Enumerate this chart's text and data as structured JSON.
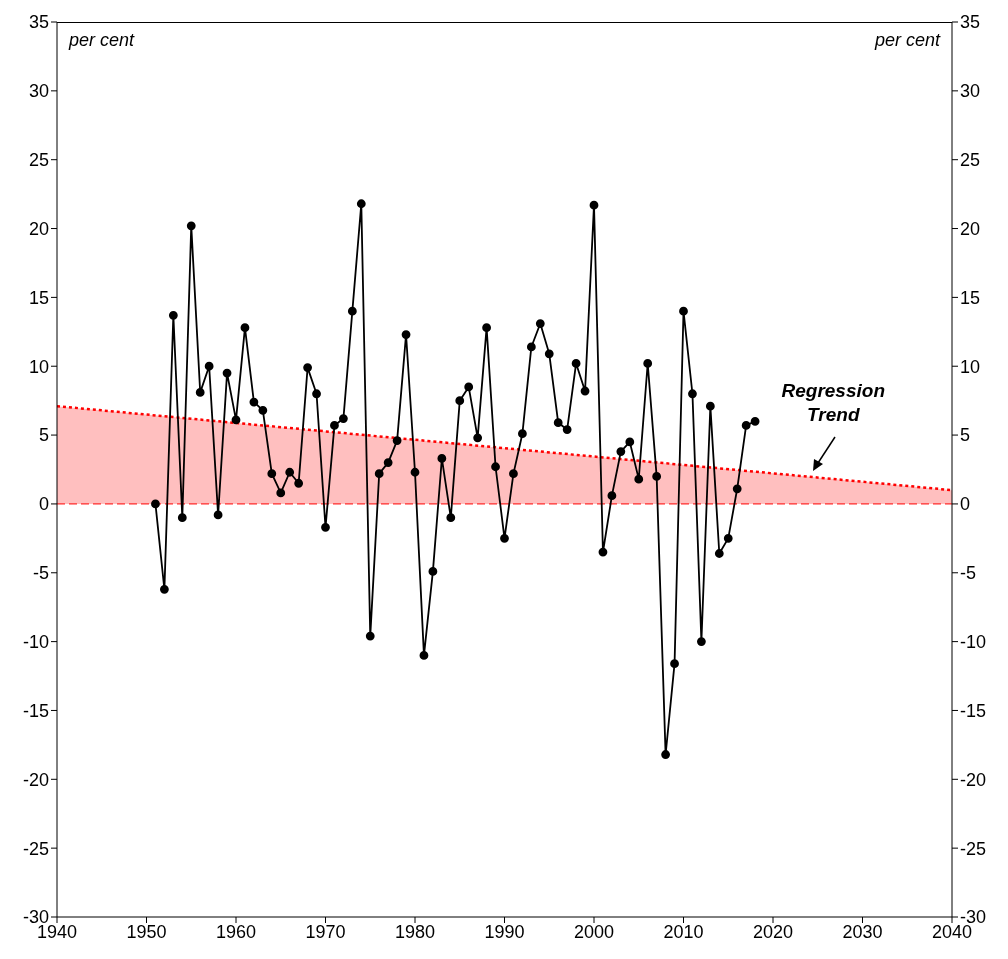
{
  "chart_data": {
    "type": "line",
    "ylabel": "per cent",
    "y2label": "per cent",
    "xlim": [
      1940,
      2040
    ],
    "xticks": [
      1940,
      1950,
      1960,
      1970,
      1980,
      1990,
      2000,
      2010,
      2020,
      2030,
      2040
    ],
    "ylim": [
      -30,
      35
    ],
    "yticks": [
      -30,
      -25,
      -20,
      -15,
      -10,
      -5,
      0,
      5,
      10,
      15,
      20,
      25,
      30,
      35
    ],
    "y2lim": [
      -30,
      35
    ],
    "y2ticks": [
      -30,
      -25,
      -20,
      -15,
      -10,
      -5,
      0,
      5,
      10,
      15,
      20,
      25,
      30,
      35
    ],
    "marker": "circle",
    "line_style": "solid",
    "series": [
      {
        "type": "area",
        "color": "#ff0000",
        "line_style": "dotted",
        "marker": "none",
        "x": [
          1940,
          2040
        ],
        "values": [
          7.1,
          1.0
        ]
      },
      {
        "color": "#000000",
        "x": [
          1951,
          1952,
          1953,
          1954,
          1955,
          1956,
          1957,
          1958,
          1959,
          1960,
          1961,
          1962,
          1963,
          1964,
          1965,
          1966,
          1967,
          1968,
          1969,
          1970,
          1971,
          1972,
          1973,
          1974,
          1975,
          1976,
          1977,
          1978,
          1979,
          1980,
          1981,
          1982,
          1983,
          1984,
          1985,
          1986,
          1987,
          1988,
          1989,
          1990,
          1991,
          1992,
          1993,
          1994,
          1995,
          1996,
          1997,
          1998,
          1999,
          2000,
          2001,
          2002,
          2003,
          2004,
          2005,
          2006,
          2007,
          2008,
          2009,
          2010,
          2011,
          2012,
          2013,
          2014,
          2015,
          2016,
          2017,
          2018
        ],
        "values": [
          0.0,
          -6.2,
          13.7,
          -1.0,
          20.2,
          8.1,
          10.0,
          -0.8,
          9.5,
          6.1,
          12.8,
          7.4,
          6.8,
          2.2,
          0.8,
          2.3,
          1.5,
          9.9,
          8.0,
          -1.7,
          5.7,
          6.2,
          14.0,
          21.8,
          -9.6,
          2.2,
          3.0,
          4.6,
          12.3,
          2.3,
          -11.0,
          -4.9,
          3.3,
          -1.0,
          7.5,
          8.5,
          4.8,
          12.8,
          2.7,
          -2.5,
          2.2,
          5.1,
          11.4,
          13.1,
          10.9,
          5.9,
          5.4,
          10.2,
          8.2,
          21.7,
          -3.5,
          0.6,
          3.8,
          4.5,
          1.8,
          10.2,
          2.0,
          -18.2,
          -11.6,
          14.0,
          8.0,
          -10.0,
          7.1,
          -3.6,
          -2.5,
          1.1,
          5.7,
          6.0
        ]
      }
    ],
    "ref_lines": [
      {
        "axis": "y",
        "value": 0,
        "color": "#ff0000",
        "line_style": "dashed"
      }
    ],
    "annotations": [
      {
        "text": "Regression Trend",
        "x": 2024.5,
        "y": 2.4
      }
    ]
  }
}
